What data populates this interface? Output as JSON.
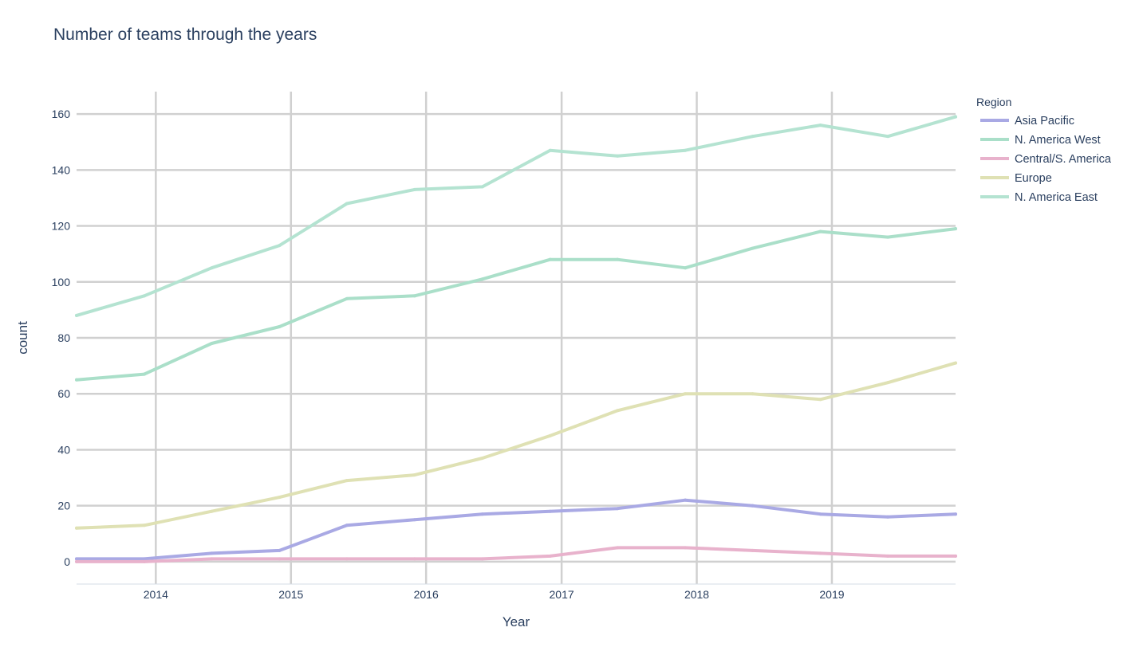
{
  "chart_data": {
    "type": "line",
    "title": "Number of teams through the years",
    "xlabel": "Year",
    "ylabel": "count",
    "x_ticks": [
      "2014",
      "2015",
      "2016",
      "2017",
      "2018",
      "2019"
    ],
    "y_ticks": [
      "0",
      "20",
      "40",
      "60",
      "80",
      "100",
      "120",
      "140",
      "160"
    ],
    "xlim": [
      "2013-06-01",
      "2019-12-01"
    ],
    "ylim": [
      -8,
      168
    ],
    "grid": true,
    "legend": {
      "title": "Region",
      "position": "top-right"
    },
    "x": [
      "2013-06",
      "2013-12",
      "2014-06",
      "2014-12",
      "2015-06",
      "2015-12",
      "2016-06",
      "2016-12",
      "2017-06",
      "2017-12",
      "2018-06",
      "2018-12",
      "2019-06",
      "2019-12"
    ],
    "series": [
      {
        "name": "Asia Pacific",
        "color": "#a9a9e4",
        "values": [
          1,
          1,
          3,
          4,
          13,
          15,
          17,
          18,
          19,
          22,
          20,
          17,
          16,
          17
        ]
      },
      {
        "name": "N. America West",
        "color": "#aadfc9",
        "values": [
          65,
          67,
          78,
          84,
          94,
          95,
          101,
          108,
          108,
          105,
          112,
          118,
          116,
          119
        ]
      },
      {
        "name": "Central/S. America",
        "color": "#e8b2cc",
        "values": [
          0,
          0,
          1,
          1,
          1,
          1,
          1,
          2,
          5,
          5,
          4,
          3,
          2,
          2
        ]
      },
      {
        "name": "Europe",
        "color": "#dfe1b4",
        "values": [
          12,
          13,
          18,
          23,
          29,
          31,
          37,
          45,
          54,
          60,
          60,
          58,
          64,
          71
        ]
      },
      {
        "name": "N. America East",
        "color": "#b4e3d1",
        "values": [
          88,
          95,
          105,
          113,
          128,
          133,
          134,
          147,
          145,
          147,
          152,
          156,
          152,
          159
        ]
      }
    ]
  }
}
